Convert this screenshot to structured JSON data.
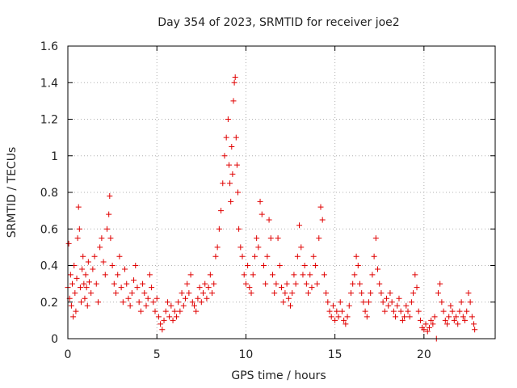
{
  "chart_data": {
    "type": "scatter",
    "title": "Day 354 of 2023, SRMTID for receiver joe2",
    "xlabel": "GPS time / hours",
    "ylabel": "SRMTID / TECUs",
    "xlim": [
      0,
      24
    ],
    "ylim": [
      0,
      1.6
    ],
    "xticks": [
      0,
      5,
      10,
      15,
      20
    ],
    "yticks": [
      0,
      0.2,
      0.4,
      0.6,
      0.8,
      1,
      1.2,
      1.4,
      1.6
    ],
    "grid": true,
    "marker": "+",
    "color": "#e00000",
    "series": [
      {
        "name": "SRMTID",
        "points": [
          [
            0.0,
            0.28
          ],
          [
            0.05,
            0.52
          ],
          [
            0.1,
            0.22
          ],
          [
            0.15,
            0.35
          ],
          [
            0.2,
            0.18
          ],
          [
            0.25,
            0.3
          ],
          [
            0.3,
            0.12
          ],
          [
            0.35,
            0.4
          ],
          [
            0.4,
            0.25
          ],
          [
            0.45,
            0.15
          ],
          [
            0.5,
            0.33
          ],
          [
            0.55,
            0.55
          ],
          [
            0.6,
            0.72
          ],
          [
            0.65,
            0.6
          ],
          [
            0.7,
            0.28
          ],
          [
            0.75,
            0.2
          ],
          [
            0.8,
            0.38
          ],
          [
            0.85,
            0.45
          ],
          [
            0.9,
            0.3
          ],
          [
            0.95,
            0.22
          ],
          [
            1.0,
            0.35
          ],
          [
            1.05,
            0.28
          ],
          [
            1.1,
            0.18
          ],
          [
            1.15,
            0.42
          ],
          [
            1.2,
            0.31
          ],
          [
            1.3,
            0.25
          ],
          [
            1.4,
            0.38
          ],
          [
            1.5,
            0.45
          ],
          [
            1.6,
            0.3
          ],
          [
            1.7,
            0.2
          ],
          [
            1.8,
            0.5
          ],
          [
            1.9,
            0.55
          ],
          [
            2.0,
            0.42
          ],
          [
            2.1,
            0.35
          ],
          [
            2.2,
            0.6
          ],
          [
            2.3,
            0.68
          ],
          [
            2.35,
            0.78
          ],
          [
            2.4,
            0.55
          ],
          [
            2.5,
            0.4
          ],
          [
            2.6,
            0.3
          ],
          [
            2.7,
            0.25
          ],
          [
            2.8,
            0.35
          ],
          [
            2.9,
            0.45
          ],
          [
            3.0,
            0.28
          ],
          [
            3.1,
            0.2
          ],
          [
            3.2,
            0.38
          ],
          [
            3.3,
            0.3
          ],
          [
            3.4,
            0.22
          ],
          [
            3.5,
            0.18
          ],
          [
            3.6,
            0.25
          ],
          [
            3.7,
            0.32
          ],
          [
            3.8,
            0.4
          ],
          [
            3.9,
            0.28
          ],
          [
            4.0,
            0.2
          ],
          [
            4.1,
            0.15
          ],
          [
            4.2,
            0.3
          ],
          [
            4.3,
            0.25
          ],
          [
            4.4,
            0.18
          ],
          [
            4.5,
            0.22
          ],
          [
            4.6,
            0.35
          ],
          [
            4.7,
            0.28
          ],
          [
            4.8,
            0.2
          ],
          [
            4.9,
            0.15
          ],
          [
            5.0,
            0.22
          ],
          [
            5.1,
            0.12
          ],
          [
            5.2,
            0.08
          ],
          [
            5.3,
            0.05
          ],
          [
            5.4,
            0.1
          ],
          [
            5.5,
            0.15
          ],
          [
            5.6,
            0.2
          ],
          [
            5.7,
            0.12
          ],
          [
            5.8,
            0.18
          ],
          [
            5.9,
            0.1
          ],
          [
            6.0,
            0.15
          ],
          [
            6.1,
            0.12
          ],
          [
            6.2,
            0.2
          ],
          [
            6.3,
            0.15
          ],
          [
            6.4,
            0.25
          ],
          [
            6.5,
            0.18
          ],
          [
            6.6,
            0.22
          ],
          [
            6.7,
            0.3
          ],
          [
            6.8,
            0.25
          ],
          [
            6.9,
            0.35
          ],
          [
            7.0,
            0.2
          ],
          [
            7.1,
            0.18
          ],
          [
            7.2,
            0.15
          ],
          [
            7.3,
            0.22
          ],
          [
            7.4,
            0.28
          ],
          [
            7.5,
            0.2
          ],
          [
            7.6,
            0.25
          ],
          [
            7.7,
            0.3
          ],
          [
            7.8,
            0.22
          ],
          [
            7.9,
            0.28
          ],
          [
            8.0,
            0.35
          ],
          [
            8.1,
            0.25
          ],
          [
            8.2,
            0.3
          ],
          [
            8.3,
            0.45
          ],
          [
            8.4,
            0.5
          ],
          [
            8.5,
            0.6
          ],
          [
            8.6,
            0.7
          ],
          [
            8.7,
            0.85
          ],
          [
            8.8,
            1.0
          ],
          [
            8.9,
            1.1
          ],
          [
            9.0,
            1.2
          ],
          [
            9.05,
            0.95
          ],
          [
            9.1,
            0.85
          ],
          [
            9.15,
            0.75
          ],
          [
            9.2,
            1.05
          ],
          [
            9.25,
            0.9
          ],
          [
            9.3,
            1.3
          ],
          [
            9.35,
            1.4
          ],
          [
            9.4,
            1.43
          ],
          [
            9.45,
            1.1
          ],
          [
            9.5,
            0.95
          ],
          [
            9.55,
            0.8
          ],
          [
            9.6,
            0.6
          ],
          [
            9.7,
            0.5
          ],
          [
            9.8,
            0.45
          ],
          [
            9.9,
            0.35
          ],
          [
            10.0,
            0.3
          ],
          [
            10.1,
            0.4
          ],
          [
            10.2,
            0.28
          ],
          [
            10.3,
            0.25
          ],
          [
            10.4,
            0.35
          ],
          [
            10.5,
            0.45
          ],
          [
            10.6,
            0.55
          ],
          [
            10.7,
            0.5
          ],
          [
            10.8,
            0.75
          ],
          [
            10.9,
            0.68
          ],
          [
            11.0,
            0.4
          ],
          [
            11.1,
            0.3
          ],
          [
            11.2,
            0.45
          ],
          [
            11.3,
            0.65
          ],
          [
            11.4,
            0.55
          ],
          [
            11.5,
            0.35
          ],
          [
            11.6,
            0.25
          ],
          [
            11.7,
            0.3
          ],
          [
            11.8,
            0.55
          ],
          [
            11.9,
            0.4
          ],
          [
            12.0,
            0.28
          ],
          [
            12.1,
            0.2
          ],
          [
            12.2,
            0.25
          ],
          [
            12.3,
            0.3
          ],
          [
            12.4,
            0.22
          ],
          [
            12.5,
            0.18
          ],
          [
            12.6,
            0.25
          ],
          [
            12.7,
            0.35
          ],
          [
            12.8,
            0.3
          ],
          [
            12.9,
            0.45
          ],
          [
            13.0,
            0.62
          ],
          [
            13.1,
            0.5
          ],
          [
            13.2,
            0.35
          ],
          [
            13.3,
            0.4
          ],
          [
            13.4,
            0.3
          ],
          [
            13.5,
            0.25
          ],
          [
            13.6,
            0.35
          ],
          [
            13.7,
            0.28
          ],
          [
            13.8,
            0.45
          ],
          [
            13.9,
            0.4
          ],
          [
            14.0,
            0.3
          ],
          [
            14.1,
            0.55
          ],
          [
            14.2,
            0.72
          ],
          [
            14.3,
            0.65
          ],
          [
            14.4,
            0.35
          ],
          [
            14.5,
            0.25
          ],
          [
            14.6,
            0.2
          ],
          [
            14.7,
            0.15
          ],
          [
            14.8,
            0.12
          ],
          [
            14.9,
            0.18
          ],
          [
            15.0,
            0.1
          ],
          [
            15.1,
            0.15
          ],
          [
            15.2,
            0.12
          ],
          [
            15.3,
            0.2
          ],
          [
            15.4,
            0.15
          ],
          [
            15.5,
            0.1
          ],
          [
            15.6,
            0.08
          ],
          [
            15.7,
            0.12
          ],
          [
            15.8,
            0.18
          ],
          [
            15.9,
            0.25
          ],
          [
            16.0,
            0.3
          ],
          [
            16.1,
            0.35
          ],
          [
            16.2,
            0.45
          ],
          [
            16.3,
            0.4
          ],
          [
            16.4,
            0.3
          ],
          [
            16.5,
            0.25
          ],
          [
            16.6,
            0.2
          ],
          [
            16.7,
            0.15
          ],
          [
            16.8,
            0.12
          ],
          [
            16.9,
            0.2
          ],
          [
            17.0,
            0.25
          ],
          [
            17.1,
            0.35
          ],
          [
            17.2,
            0.45
          ],
          [
            17.3,
            0.55
          ],
          [
            17.4,
            0.38
          ],
          [
            17.5,
            0.3
          ],
          [
            17.6,
            0.25
          ],
          [
            17.7,
            0.2
          ],
          [
            17.8,
            0.15
          ],
          [
            17.9,
            0.22
          ],
          [
            18.0,
            0.18
          ],
          [
            18.1,
            0.25
          ],
          [
            18.2,
            0.2
          ],
          [
            18.3,
            0.15
          ],
          [
            18.4,
            0.12
          ],
          [
            18.5,
            0.18
          ],
          [
            18.6,
            0.22
          ],
          [
            18.7,
            0.15
          ],
          [
            18.8,
            0.1
          ],
          [
            18.9,
            0.12
          ],
          [
            19.0,
            0.18
          ],
          [
            19.1,
            0.15
          ],
          [
            19.2,
            0.12
          ],
          [
            19.3,
            0.2
          ],
          [
            19.4,
            0.25
          ],
          [
            19.5,
            0.35
          ],
          [
            19.6,
            0.28
          ],
          [
            19.7,
            0.15
          ],
          [
            19.8,
            0.1
          ],
          [
            19.9,
            0.06
          ],
          [
            20.0,
            0.05
          ],
          [
            20.1,
            0.08
          ],
          [
            20.2,
            0.04
          ],
          [
            20.3,
            0.06
          ],
          [
            20.4,
            0.1
          ],
          [
            20.5,
            0.08
          ],
          [
            20.6,
            0.12
          ],
          [
            20.7,
            0.0
          ],
          [
            20.8,
            0.25
          ],
          [
            20.9,
            0.3
          ],
          [
            21.0,
            0.2
          ],
          [
            21.1,
            0.15
          ],
          [
            21.2,
            0.1
          ],
          [
            21.3,
            0.08
          ],
          [
            21.4,
            0.12
          ],
          [
            21.5,
            0.18
          ],
          [
            21.6,
            0.15
          ],
          [
            21.7,
            0.1
          ],
          [
            21.8,
            0.12
          ],
          [
            21.9,
            0.08
          ],
          [
            22.0,
            0.15
          ],
          [
            22.1,
            0.2
          ],
          [
            22.2,
            0.12
          ],
          [
            22.3,
            0.1
          ],
          [
            22.4,
            0.15
          ],
          [
            22.5,
            0.25
          ],
          [
            22.6,
            0.2
          ],
          [
            22.7,
            0.12
          ],
          [
            22.8,
            0.08
          ],
          [
            22.85,
            0.05
          ]
        ]
      }
    ]
  }
}
